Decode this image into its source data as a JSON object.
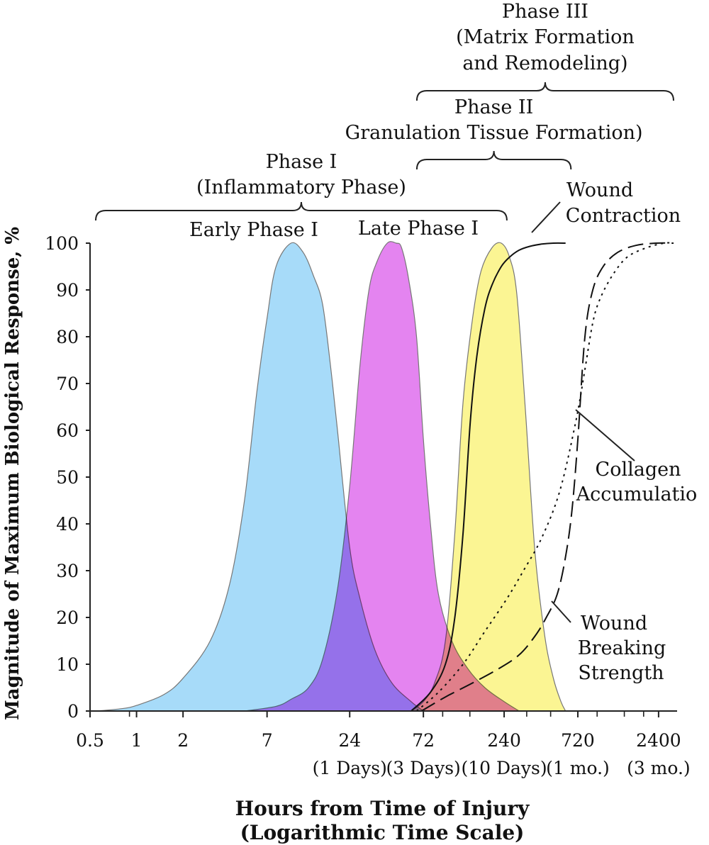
{
  "chart_data": {
    "type": "area",
    "xscale": "log",
    "xlim": [
      0.5,
      3000
    ],
    "ylim": [
      0,
      100
    ],
    "xlabel": [
      "Hours from Time of Injury",
      "(Logarithmic Time Scale)"
    ],
    "ylabel": "Magnitude of Maximum Biological Response, %",
    "x_ticks": [
      0.5,
      1,
      2,
      7,
      24,
      72,
      240,
      720,
      2400
    ],
    "x_tick_labels": [
      "0.5",
      "1",
      "2",
      "7",
      "24",
      "72",
      "240",
      "720",
      "2400"
    ],
    "x_ticks_minor": [
      0.9,
      96,
      144,
      336,
      480,
      960,
      1440,
      1920
    ],
    "x_sub_labels": [
      {
        "x": 24,
        "text": "(1 Days)"
      },
      {
        "x": 72,
        "text": "(3 Days)"
      },
      {
        "x": 240,
        "text": "(10 Days)"
      },
      {
        "x": 720,
        "text": "(1 mo.)"
      },
      {
        "x": 2400,
        "text": "(3 mo.)"
      }
    ],
    "y_ticks": [
      0,
      10,
      20,
      30,
      40,
      50,
      60,
      70,
      80,
      90,
      100
    ],
    "series": [
      {
        "style": "filled",
        "color": "#9fd8f8",
        "x": [
          0.55,
          0.8,
          1.0,
          1.5,
          2,
          3,
          4,
          5,
          6,
          7,
          8,
          10,
          12,
          14,
          16,
          18,
          20,
          24,
          28,
          35,
          45,
          60,
          72
        ],
        "y": [
          0,
          0.5,
          1.2,
          3.5,
          7,
          15,
          27,
          45,
          68,
          84,
          95,
          100,
          98,
          93,
          87,
          74,
          60,
          35,
          24,
          13,
          6,
          2,
          0
        ]
      },
      {
        "style": "filled",
        "color": "#e27aef",
        "x": [
          5,
          8,
          10,
          13,
          16,
          20,
          24,
          28,
          32,
          36,
          42,
          48,
          52,
          58,
          65,
          72,
          80,
          90,
          110,
          140,
          180,
          240,
          300
        ],
        "y": [
          0,
          1,
          2.5,
          5,
          11,
          26,
          48,
          74,
          90,
          96,
          100,
          100,
          99,
          92,
          80,
          58,
          40,
          25,
          15,
          9,
          5,
          2,
          0
        ]
      },
      {
        "style": "filled",
        "color": "#fbf48a",
        "x": [
          60,
          72,
          85,
          100,
          115,
          130,
          150,
          170,
          200,
          230,
          260,
          290,
          330,
          380,
          440,
          500,
          560,
          600
        ],
        "y": [
          0,
          2,
          6,
          15,
          38,
          66,
          84,
          94,
          99,
          100,
          97,
          89,
          64,
          34,
          16,
          7,
          2,
          0
        ]
      },
      {
        "style": "solid",
        "x": [
          60,
          80,
          100,
          115,
          130,
          145,
          160,
          180,
          200,
          230,
          260,
          300,
          350,
          420,
          500,
          600
        ],
        "y": [
          0,
          4,
          10,
          20,
          38,
          62,
          76,
          86,
          91,
          95,
          97,
          98.5,
          99.3,
          99.8,
          100,
          100
        ]
      },
      {
        "style": "dotted",
        "x": [
          65,
          90,
          130,
          180,
          250,
          320,
          420,
          550,
          700,
          800,
          900,
          1000,
          1200,
          1500,
          2000,
          2600,
          3000
        ],
        "y": [
          0,
          4,
          10,
          17,
          24,
          30,
          37,
          47,
          62,
          73,
          83,
          88,
          93,
          97,
          99,
          100,
          100
        ]
      },
      {
        "style": "dashed",
        "x": [
          70,
          100,
          150,
          220,
          300,
          380,
          450,
          530,
          600,
          660,
          720,
          800,
          900,
          1050,
          1300,
          1700,
          2300,
          3000
        ],
        "y": [
          0,
          3,
          6,
          9,
          12,
          16,
          20,
          25,
          33,
          43,
          58,
          80,
          90,
          95,
          98,
          99.5,
          100,
          100
        ]
      }
    ],
    "annotations": {
      "early_phase": "Early Phase I",
      "late_phase": "Late Phase I",
      "wound_contraction": [
        "Wound",
        "Contraction"
      ],
      "collagen": [
        "Collagen",
        "Accumulatio"
      ],
      "breaking_strength": [
        "Wound",
        "Breaking",
        "Strength"
      ]
    },
    "phases": [
      {
        "lines": [
          "Phase I",
          "(Inflammatory Phase)"
        ],
        "x_start": 0.5,
        "x_end": 250
      },
      {
        "lines": [
          "Phase II",
          "Granulation Tissue Formation)"
        ],
        "x_start": 60,
        "x_end": 650
      },
      {
        "lines": [
          "Phase III",
          "(Matrix Formation",
          "and Remodeling)"
        ],
        "x_start": 60,
        "x_end": 3000
      }
    ]
  }
}
